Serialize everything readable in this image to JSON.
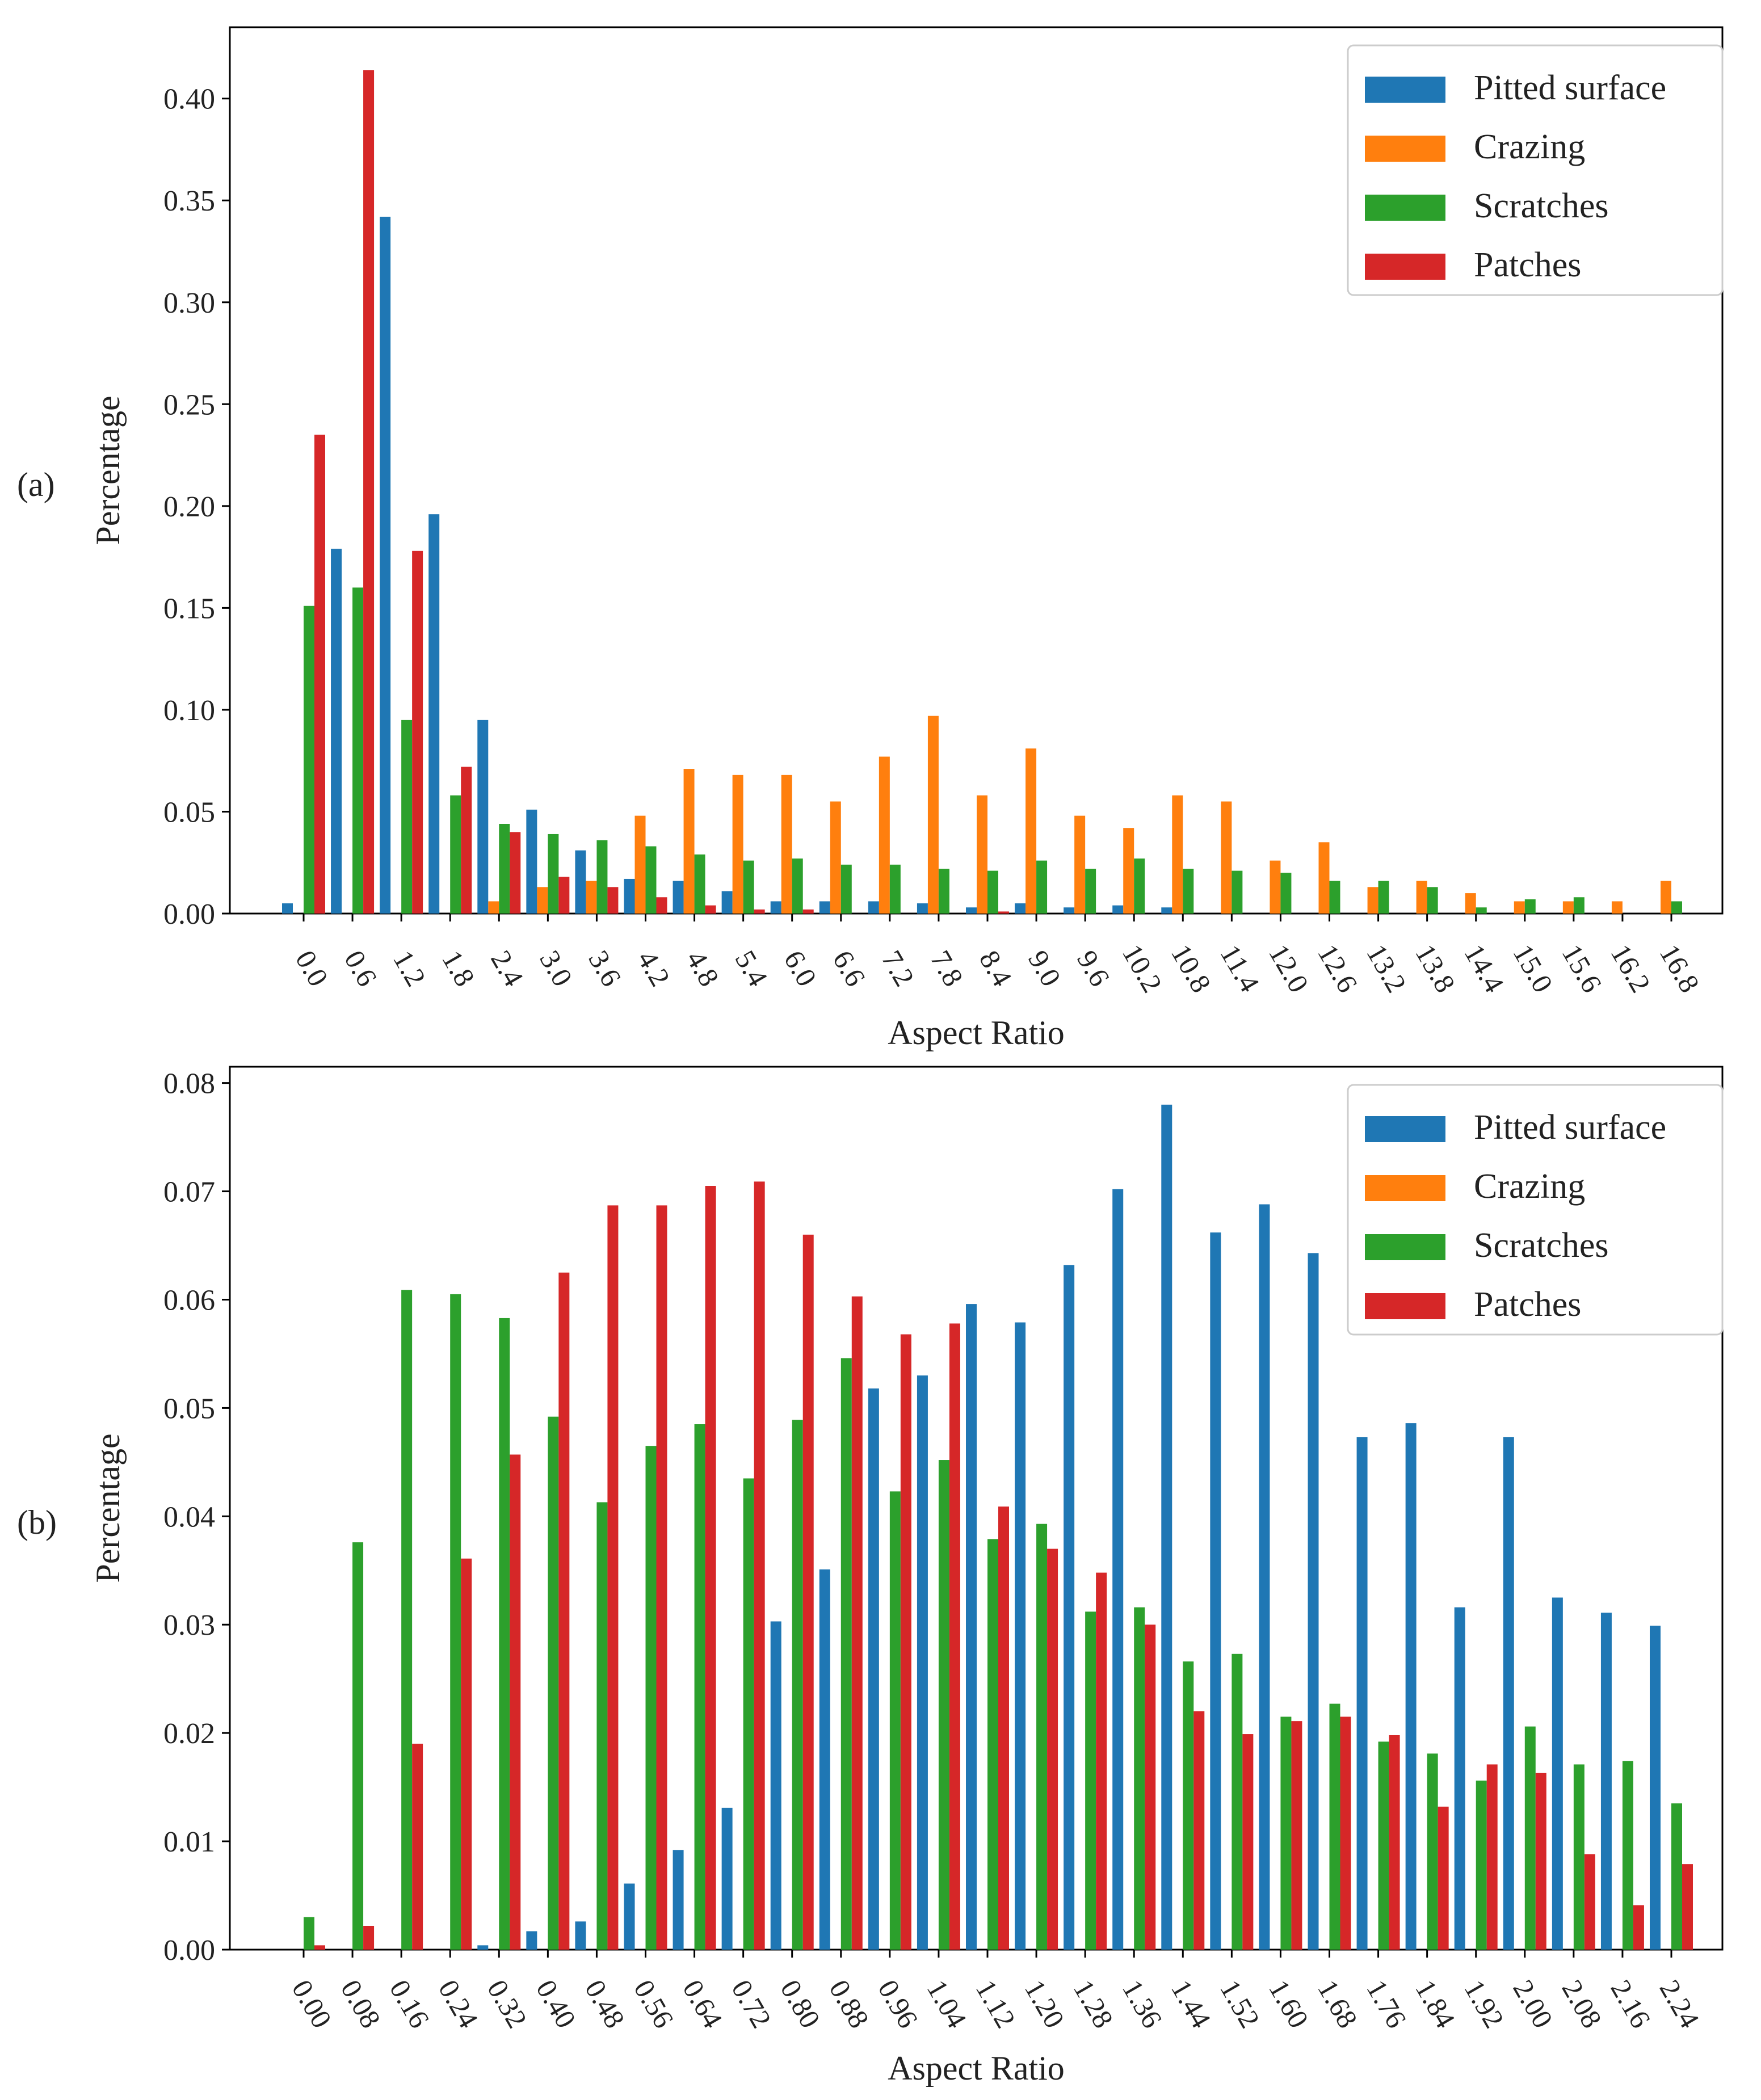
{
  "colors": {
    "pitted": "#1f77b4",
    "crazing": "#ff7f0e",
    "scratches": "#2ca02c",
    "patches": "#d62728"
  },
  "chart_data": [
    {
      "type": "bar",
      "panel_label": "(a)",
      "xlabel": "Aspect Ratio",
      "ylabel": "Percentage",
      "ylim": [
        0,
        0.435
      ],
      "yticks": [
        "0.00",
        "0.05",
        "0.10",
        "0.15",
        "0.20",
        "0.25",
        "0.30",
        "0.35",
        "0.40"
      ],
      "legend_position": "top-right",
      "categories": [
        "0.0",
        "0.6",
        "1.2",
        "1.8",
        "2.4",
        "3.0",
        "3.6",
        "4.2",
        "4.8",
        "5.4",
        "6.0",
        "6.6",
        "7.2",
        "7.8",
        "8.4",
        "9.0",
        "9.6",
        "10.2",
        "10.8",
        "11.4",
        "12.0",
        "12.6",
        "13.2",
        "13.8",
        "14.4",
        "15.0",
        "15.6",
        "16.2",
        "16.8"
      ],
      "series": [
        {
          "name": "Pitted surface",
          "color_key": "pitted",
          "values": [
            0.005,
            0.179,
            0.342,
            0.196,
            0.095,
            0.051,
            0.031,
            0.017,
            0.016,
            0.011,
            0.006,
            0.006,
            0.006,
            0.005,
            0.003,
            0.005,
            0.003,
            0.004,
            0.003,
            0,
            0,
            0,
            0,
            0,
            0,
            0,
            0,
            0,
            0
          ]
        },
        {
          "name": "Crazing",
          "color_key": "crazing",
          "values": [
            0,
            0,
            0,
            0,
            0.006,
            0.013,
            0.016,
            0.048,
            0.071,
            0.068,
            0.068,
            0.055,
            0.077,
            0.097,
            0.058,
            0.081,
            0.048,
            0.042,
            0.058,
            0.055,
            0.026,
            0.035,
            0.013,
            0.016,
            0.01,
            0.006,
            0.006,
            0.006,
            0.016
          ]
        },
        {
          "name": "Scratches",
          "color_key": "scratches",
          "values": [
            0.151,
            0.16,
            0.095,
            0.058,
            0.044,
            0.039,
            0.036,
            0.033,
            0.029,
            0.026,
            0.027,
            0.024,
            0.024,
            0.022,
            0.021,
            0.026,
            0.022,
            0.027,
            0.022,
            0.021,
            0.02,
            0.016,
            0.016,
            0.013,
            0.003,
            0.007,
            0.008,
            0,
            0.006
          ]
        },
        {
          "name": "Patches",
          "color_key": "patches",
          "values": [
            0.235,
            0.414,
            0.178,
            0.072,
            0.04,
            0.018,
            0.013,
            0.008,
            0.004,
            0.002,
            0.002,
            0,
            0,
            0,
            0.001,
            0,
            0,
            0,
            0,
            0,
            0,
            0,
            0,
            0,
            0,
            0,
            0,
            0,
            0
          ]
        }
      ]
    },
    {
      "type": "bar",
      "panel_label": "(b)",
      "xlabel": "Aspect Ratio",
      "ylabel": "Percentage",
      "ylim": [
        0,
        0.0815
      ],
      "yticks": [
        "0.00",
        "0.01",
        "0.02",
        "0.03",
        "0.04",
        "0.05",
        "0.06",
        "0.07",
        "0.08"
      ],
      "legend_position": "top-right",
      "categories": [
        "0.00",
        "0.08",
        "0.16",
        "0.24",
        "0.32",
        "0.40",
        "0.48",
        "0.56",
        "0.64",
        "0.72",
        "0.80",
        "0.88",
        "0.96",
        "1.04",
        "1.12",
        "1.20",
        "1.28",
        "1.36",
        "1.44",
        "1.52",
        "1.60",
        "1.68",
        "1.76",
        "1.84",
        "1.92",
        "2.00",
        "2.08",
        "2.16",
        "2.24"
      ],
      "series": [
        {
          "name": "Pitted surface",
          "color_key": "pitted",
          "values": [
            0,
            0,
            0,
            0,
            0.0004,
            0.0017,
            0.0026,
            0.0061,
            0.0092,
            0.0131,
            0.0303,
            0.0351,
            0.0518,
            0.053,
            0.0596,
            0.0579,
            0.0632,
            0.0702,
            0.078,
            0.0662,
            0.0688,
            0.0643,
            0.0473,
            0.0486,
            0.0316,
            0.0473,
            0.0325,
            0.0311,
            0.0299
          ]
        },
        {
          "name": "Crazing",
          "color_key": "crazing",
          "values": [
            0,
            0,
            0,
            0,
            0,
            0,
            0,
            0,
            0,
            0,
            0,
            0,
            0,
            0,
            0,
            0,
            0,
            0,
            0,
            0,
            0,
            0,
            0,
            0,
            0,
            0,
            0,
            0,
            0
          ]
        },
        {
          "name": "Scratches",
          "color_key": "scratches",
          "values": [
            0.003,
            0.0376,
            0.0609,
            0.0605,
            0.0583,
            0.0492,
            0.0413,
            0.0465,
            0.0485,
            0.0435,
            0.0489,
            0.0546,
            0.0423,
            0.0452,
            0.0379,
            0.0393,
            0.0312,
            0.0316,
            0.0266,
            0.0273,
            0.0215,
            0.0227,
            0.0192,
            0.0181,
            0.0156,
            0.0206,
            0.0171,
            0.0174,
            0.0135
          ]
        },
        {
          "name": "Patches",
          "color_key": "patches",
          "values": [
            0.0004,
            0.0022,
            0.019,
            0.0361,
            0.0457,
            0.0625,
            0.0687,
            0.0687,
            0.0705,
            0.0709,
            0.066,
            0.0603,
            0.0568,
            0.0578,
            0.0409,
            0.037,
            0.0348,
            0.03,
            0.022,
            0.0199,
            0.0211,
            0.0215,
            0.0198,
            0.0132,
            0.0171,
            0.0163,
            0.0088,
            0.0041,
            0.0079
          ]
        }
      ]
    }
  ]
}
